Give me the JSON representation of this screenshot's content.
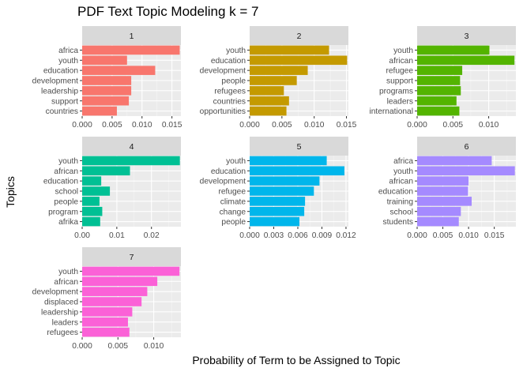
{
  "chart_data": {
    "type": "bar",
    "orientation": "horizontal",
    "title": "PDF Text Topic Modeling k = 7",
    "xlabel": "Probability of Term to be Assigned to Topic",
    "ylabel": "Topics",
    "grid": true,
    "legend": "none",
    "panels": [
      {
        "strip": "1",
        "color": "#F8766D",
        "xlim": [
          0,
          0.0165
        ],
        "ticks": [
          {
            "v": 0,
            "label": "0.000"
          },
          {
            "v": 0.005,
            "label": "0.005"
          },
          {
            "v": 0.01,
            "label": "0.010"
          },
          {
            "v": 0.015,
            "label": "0.015"
          }
        ],
        "terms": [
          "africa",
          "youth",
          "education",
          "development",
          "leadership",
          "support",
          "countries"
        ],
        "values": [
          0.0163,
          0.0075,
          0.0122,
          0.0082,
          0.0082,
          0.0078,
          0.0058
        ]
      },
      {
        "strip": "2",
        "color": "#C49A00",
        "xlim": [
          0,
          0.0153
        ],
        "ticks": [
          {
            "v": 0,
            "label": "0.000"
          },
          {
            "v": 0.005,
            "label": "0.005"
          },
          {
            "v": 0.01,
            "label": "0.010"
          },
          {
            "v": 0.015,
            "label": "0.015"
          }
        ],
        "terms": [
          "youth",
          "education",
          "development",
          "people",
          "refugees",
          "countries",
          "opportunities"
        ],
        "values": [
          0.0123,
          0.0151,
          0.009,
          0.0073,
          0.0053,
          0.0061,
          0.0057
        ]
      },
      {
        "strip": "3",
        "color": "#53B400",
        "xlim": [
          0,
          0.0138
        ],
        "ticks": [
          {
            "v": 0,
            "label": "0.000"
          },
          {
            "v": 0.005,
            "label": "0.005"
          },
          {
            "v": 0.01,
            "label": "0.010"
          }
        ],
        "terms": [
          "youth",
          "african",
          "refugee",
          "support",
          "programs",
          "leaders",
          "international"
        ],
        "values": [
          0.0101,
          0.0136,
          0.0063,
          0.006,
          0.0061,
          0.0055,
          0.0059
        ]
      },
      {
        "strip": "4",
        "color": "#00C094",
        "xlim": [
          0,
          0.0285
        ],
        "ticks": [
          {
            "v": 0,
            "label": "0.00"
          },
          {
            "v": 0.01,
            "label": "0.01"
          },
          {
            "v": 0.02,
            "label": "0.02"
          }
        ],
        "terms": [
          "youth",
          "african",
          "education",
          "school",
          "people",
          "program",
          "afrika"
        ],
        "values": [
          0.0282,
          0.0138,
          0.0055,
          0.008,
          0.005,
          0.0058,
          0.0052
        ]
      },
      {
        "strip": "5",
        "color": "#00B6EB",
        "xlim": [
          0,
          0.0123
        ],
        "ticks": [
          {
            "v": 0,
            "label": "0.000"
          },
          {
            "v": 0.003,
            "label": "0.003"
          },
          {
            "v": 0.006,
            "label": "0.006"
          },
          {
            "v": 0.009,
            "label": "0.009"
          },
          {
            "v": 0.012,
            "label": "0.012"
          }
        ],
        "terms": [
          "youth",
          "education",
          "development",
          "refugee",
          "climate",
          "change",
          "people"
        ],
        "values": [
          0.0096,
          0.0118,
          0.0087,
          0.008,
          0.0069,
          0.0068,
          0.0062
        ]
      },
      {
        "strip": "6",
        "color": "#A58AFF",
        "xlim": [
          0,
          0.0192
        ],
        "ticks": [
          {
            "v": 0,
            "label": "0.000"
          },
          {
            "v": 0.005,
            "label": "0.005"
          },
          {
            "v": 0.01,
            "label": "0.010"
          },
          {
            "v": 0.015,
            "label": "0.015"
          }
        ],
        "terms": [
          "africa",
          "youth",
          "african",
          "education",
          "training",
          "school",
          "students"
        ],
        "values": [
          0.0145,
          0.019,
          0.01,
          0.0099,
          0.0106,
          0.0085,
          0.0081
        ]
      },
      {
        "strip": "7",
        "color": "#FB61D7",
        "xlim": [
          0,
          0.0138
        ],
        "ticks": [
          {
            "v": 0,
            "label": "0.000"
          },
          {
            "v": 0.005,
            "label": "0.005"
          },
          {
            "v": 0.01,
            "label": "0.010"
          }
        ],
        "terms": [
          "youth",
          "african",
          "development",
          "displaced",
          "leadership",
          "leaders",
          "refugees"
        ],
        "values": [
          0.0136,
          0.0105,
          0.0091,
          0.0083,
          0.007,
          0.0064,
          0.0066
        ]
      }
    ]
  }
}
